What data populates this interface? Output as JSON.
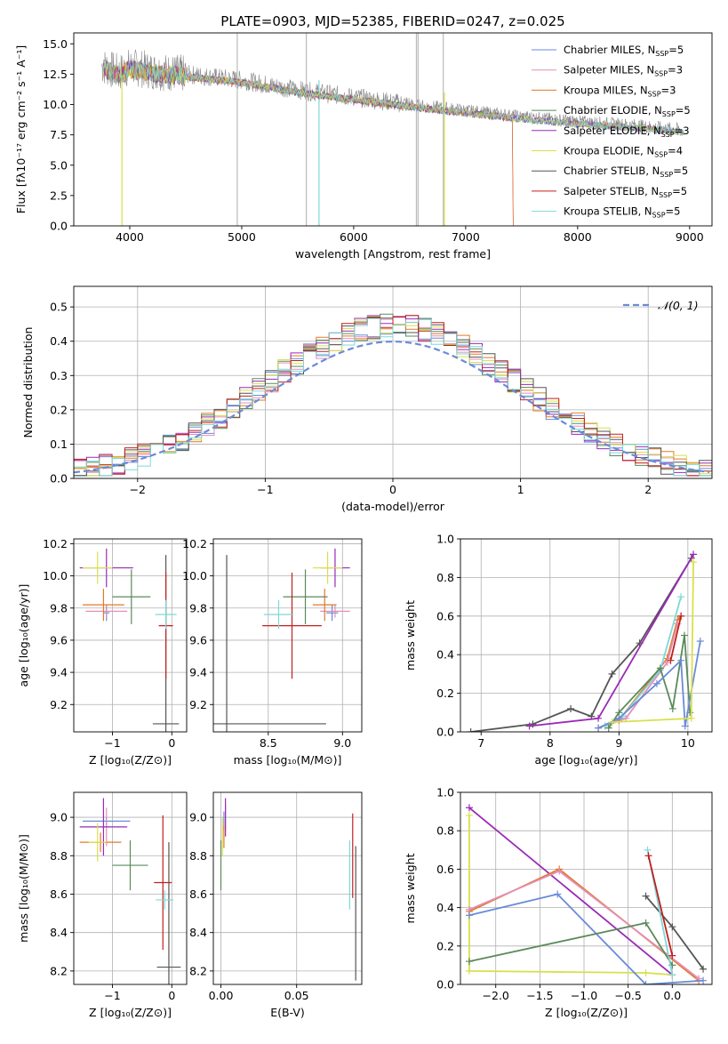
{
  "colors": {
    "blue": "#6a8bd8",
    "pink": "#e38fb8",
    "orange": "#e07a2a",
    "green": "#5b8a5b",
    "purple": "#9a2ab5",
    "yellowgreen": "#d8e04a",
    "darkgray": "#555555",
    "red": "#c0201e",
    "cyan": "#7fd8d8",
    "grid": "#b0b0b0",
    "lightgray": "#bbbbbb"
  },
  "chart_data": [
    {
      "type": "line",
      "title": "PLATE=0903, MJD=52385, FIBERID=0247, z=0.025",
      "xlabel": "wavelength [Angstrom, rest frame]",
      "ylabel": "Flux [fλ10⁻¹⁷ erg cm⁻² s⁻¹ A⁻¹]",
      "xlim": [
        3500,
        9200
      ],
      "ylim": [
        0,
        15.9
      ],
      "x_ticks": [
        "4000",
        "5000",
        "6000",
        "7000",
        "8000",
        "9000"
      ],
      "y_ticks": [
        "0.0",
        "2.5",
        "5.0",
        "7.5",
        "10.0",
        "12.5",
        "15.0"
      ],
      "grid": false,
      "legend_position": "top-right",
      "data_spectrum": [
        [
          3750,
          13.2
        ],
        [
          3900,
          12.6
        ],
        [
          4000,
          13.1
        ],
        [
          4200,
          12.8
        ],
        [
          4500,
          12.5
        ],
        [
          5000,
          12.0
        ],
        [
          5500,
          11.2
        ],
        [
          6000,
          10.6
        ],
        [
          6500,
          10.0
        ],
        [
          7000,
          9.5
        ],
        [
          7500,
          9.0
        ],
        [
          8000,
          8.6
        ],
        [
          8500,
          8.3
        ],
        [
          8950,
          7.9
        ]
      ],
      "series": [
        {
          "name": "Chabrier MILES, N_SSP=5",
          "legend_label": "Chabrier MILES, N",
          "color_key": "blue"
        },
        {
          "name": "Salpeter MILES, N_SSP=3",
          "legend_label": "Salpeter MILES, N",
          "color_key": "pink"
        },
        {
          "name": "Kroupa MILES, N_SSP=3",
          "legend_label": "Kroupa MILES, N",
          "color_key": "orange"
        },
        {
          "name": "Chabrier ELODIE, N_SSP=5",
          "legend_label": "Chabrier ELODIE, N",
          "color_key": "green"
        },
        {
          "name": "Salpeter ELODIE, N_SSP=3",
          "legend_label": "Salpeter ELODIE, N",
          "color_key": "purple"
        },
        {
          "name": "Kroupa ELODIE, N_SSP=4",
          "legend_label": "Kroupa ELODIE, N",
          "color_key": "yellowgreen"
        },
        {
          "name": "Chabrier STELIB, N_SSP=5",
          "legend_label": "Chabrier STELIB, N",
          "color_key": "darkgray"
        },
        {
          "name": "Salpeter STELIB, N_SSP=5",
          "legend_label": "Salpeter STELIB, N",
          "color_key": "red"
        },
        {
          "name": "Kroupa STELIB, N_SSP=5",
          "legend_label": "Kroupa STELIB, N",
          "color_key": "cyan"
        }
      ],
      "legend_subscript": "SSP",
      "legend_counts": [
        "=5",
        "=3",
        "=3",
        "=5",
        "=3",
        "=4",
        "=5",
        "=5",
        "=5"
      ]
    },
    {
      "type": "bar",
      "xlabel": "(data-model)/error",
      "ylabel": "Normed distribution",
      "xlim": [
        -2.5,
        2.5
      ],
      "ylim": [
        0,
        0.56
      ],
      "x_ticks": [
        "−2",
        "−1",
        "0",
        "1",
        "2"
      ],
      "y_ticks": [
        "0.0",
        "0.1",
        "0.2",
        "0.3",
        "0.4",
        "0.5"
      ],
      "grid": true,
      "legend_position": "top-right",
      "legend_label": "𝒩(0, 1)",
      "bin_width": 0.1,
      "reference_curve": "normal(0,1)"
    },
    {
      "type": "scatter",
      "xlabel": "Z [log₁₀(Z/Z⊙)]",
      "ylabel": "age  [log₁₀(age/yr)]",
      "xlim": [
        -1.65,
        0.25
      ],
      "ylim": [
        9.03,
        10.23
      ],
      "x_ticks": [
        "−1",
        "0"
      ],
      "y_ticks": [
        "9.2",
        "9.4",
        "9.6",
        "9.8",
        "10.0",
        "10.2"
      ],
      "points": [
        {
          "color_key": "blue",
          "x": -1.1,
          "xerr": 0.05,
          "y": 9.77,
          "yerr": 0.05
        },
        {
          "color_key": "pink",
          "x": -1.1,
          "xerr": 0.35,
          "y": 9.78,
          "yerr": 0.04
        },
        {
          "color_key": "orange",
          "x": -1.15,
          "xerr": 0.35,
          "y": 9.82,
          "yerr": 0.1
        },
        {
          "color_key": "green",
          "x": -0.68,
          "xerr": 0.32,
          "y": 9.87,
          "yerr": 0.17
        },
        {
          "color_key": "purple",
          "x": -1.1,
          "xerr": 0.45,
          "y": 10.05,
          "yerr": 0.12
        },
        {
          "color_key": "yellowgreen",
          "x": -1.25,
          "xerr": 0.25,
          "y": 10.05,
          "yerr": 0.1
        },
        {
          "color_key": "darkgray",
          "x": -0.1,
          "xerr": 0.22,
          "y": 9.08,
          "yerr": 1.05
        },
        {
          "color_key": "red",
          "x": -0.1,
          "xerr": 0.12,
          "y": 9.69,
          "yerr": 0.33
        },
        {
          "color_key": "cyan",
          "x": -0.1,
          "xerr": 0.18,
          "y": 9.76,
          "yerr": 0.09
        }
      ]
    },
    {
      "type": "scatter",
      "xlabel": "mass [log₁₀(M/M⊙)]",
      "ylabel": "",
      "xlim": [
        8.13,
        9.13
      ],
      "ylim": [
        9.03,
        10.23
      ],
      "x_ticks": [
        "8.5",
        "9.0"
      ],
      "y_ticks": [
        "9.2",
        "9.4",
        "9.6",
        "9.8",
        "10.0",
        "10.2"
      ],
      "points": [
        {
          "color_key": "blue",
          "x": 8.93,
          "xerr": 0.04,
          "y": 9.77,
          "yerr": 0.05
        },
        {
          "color_key": "pink",
          "x": 8.95,
          "xerr": 0.1,
          "y": 9.78,
          "yerr": 0.04
        },
        {
          "color_key": "orange",
          "x": 8.88,
          "xerr": 0.08,
          "y": 9.82,
          "yerr": 0.1
        },
        {
          "color_key": "green",
          "x": 8.75,
          "xerr": 0.15,
          "y": 9.87,
          "yerr": 0.17
        },
        {
          "color_key": "purple",
          "x": 8.95,
          "xerr": 0.1,
          "y": 10.05,
          "yerr": 0.12
        },
        {
          "color_key": "yellowgreen",
          "x": 8.9,
          "xerr": 0.1,
          "y": 10.05,
          "yerr": 0.1
        },
        {
          "color_key": "darkgray",
          "x": 8.22,
          "xerr": 0.67,
          "y": 9.08,
          "yerr": 1.05
        },
        {
          "color_key": "red",
          "x": 8.66,
          "xerr": 0.2,
          "y": 9.69,
          "yerr": 0.33
        },
        {
          "color_key": "cyan",
          "x": 8.57,
          "xerr": 0.1,
          "y": 9.76,
          "yerr": 0.09
        }
      ]
    },
    {
      "type": "line",
      "xlabel": "age  [log₁₀(age/yr)]",
      "ylabel": "mass weight",
      "xlim": [
        6.7,
        10.35
      ],
      "ylim": [
        0,
        1.0
      ],
      "x_ticks": [
        "7",
        "8",
        "9",
        "10"
      ],
      "y_ticks": [
        "0.0",
        "0.2",
        "0.4",
        "0.6",
        "0.8",
        "1.0"
      ],
      "grid": true,
      "series": [
        {
          "color_key": "darkgray",
          "x": [
            6.85,
            7.75,
            8.3,
            8.6,
            8.9,
            9.3,
            10.05
          ],
          "y": [
            0.0,
            0.04,
            0.12,
            0.08,
            0.3,
            0.46,
            0.9
          ]
        },
        {
          "color_key": "purple",
          "x": [
            7.7,
            8.7,
            10.08
          ],
          "y": [
            0.03,
            0.07,
            0.92
          ]
        },
        {
          "color_key": "orange",
          "x": [
            8.7,
            9.0,
            9.7,
            9.85,
            9.9
          ],
          "y": [
            0.02,
            0.06,
            0.38,
            0.58,
            0.6
          ]
        },
        {
          "color_key": "pink",
          "x": [
            8.8,
            9.1,
            9.7,
            9.85
          ],
          "y": [
            0.03,
            0.07,
            0.36,
            0.56
          ]
        },
        {
          "color_key": "cyan",
          "x": [
            8.8,
            9.05,
            9.6,
            9.9
          ],
          "y": [
            0.03,
            0.08,
            0.32,
            0.7
          ]
        },
        {
          "color_key": "green",
          "x": [
            8.85,
            9.0,
            9.6,
            9.78,
            9.95,
            10.03
          ],
          "y": [
            0.02,
            0.1,
            0.33,
            0.12,
            0.5,
            0.1
          ]
        },
        {
          "color_key": "blue",
          "x": [
            8.7,
            9.0,
            9.55,
            9.9,
            9.96,
            10.18
          ],
          "y": [
            0.02,
            0.07,
            0.25,
            0.37,
            0.03,
            0.47
          ]
        },
        {
          "color_key": "yellowgreen",
          "x": [
            8.9,
            10.05,
            10.08
          ],
          "y": [
            0.05,
            0.07,
            0.88
          ]
        },
        {
          "color_key": "red",
          "x": [
            9.75,
            9.9
          ],
          "y": [
            0.37,
            0.6
          ]
        }
      ]
    },
    {
      "type": "scatter",
      "xlabel": "Z [log₁₀(Z/Z⊙)]",
      "ylabel": "mass [log₁₀(M/M⊙)]",
      "xlim": [
        -1.65,
        0.25
      ],
      "ylim": [
        8.13,
        9.13
      ],
      "x_ticks": [
        "−1",
        "0"
      ],
      "y_ticks": [
        "8.2",
        "8.4",
        "8.6",
        "8.8",
        "9.0"
      ],
      "points": [
        {
          "color_key": "blue",
          "x": -1.1,
          "xerr": 0.4,
          "y": 8.98,
          "yerr": 0.02
        },
        {
          "color_key": "pink",
          "x": -1.1,
          "xerr": 0.05,
          "y": 8.95,
          "yerr": 0.1
        },
        {
          "color_key": "orange",
          "x": -1.2,
          "xerr": 0.35,
          "y": 8.87,
          "yerr": 0.05
        },
        {
          "color_key": "green",
          "x": -0.7,
          "xerr": 0.3,
          "y": 8.75,
          "yerr": 0.13
        },
        {
          "color_key": "purple",
          "x": -1.15,
          "xerr": 0.4,
          "y": 8.95,
          "yerr": 0.15
        },
        {
          "color_key": "yellowgreen",
          "x": -1.25,
          "xerr": 0.15,
          "y": 8.87,
          "yerr": 0.1
        },
        {
          "color_key": "darkgray",
          "x": -0.05,
          "xerr": 0.2,
          "y": 8.22,
          "yerr": 0.65
        },
        {
          "color_key": "red",
          "x": -0.15,
          "xerr": 0.15,
          "y": 8.66,
          "yerr": 0.35
        },
        {
          "color_key": "cyan",
          "x": -0.12,
          "xerr": 0.15,
          "y": 8.57,
          "yerr": 0.05
        }
      ]
    },
    {
      "type": "scatter",
      "xlabel": "E(B-V)",
      "ylabel": "",
      "xlim": [
        -0.005,
        0.093
      ],
      "ylim": [
        8.13,
        9.13
      ],
      "x_ticks": [
        "0.00",
        "0.05"
      ],
      "y_ticks": [
        "8.2",
        "8.4",
        "8.6",
        "8.8",
        "9.0"
      ],
      "points": [
        {
          "color_key": "blue",
          "x": 0.002,
          "y": 8.98,
          "yerr": 0.05
        },
        {
          "color_key": "pink",
          "x": 0.003,
          "y": 9.0,
          "yerr": 0.07
        },
        {
          "color_key": "orange",
          "x": 0.002,
          "y": 8.9,
          "yerr": 0.06
        },
        {
          "color_key": "green",
          "x": 0.0,
          "y": 8.75,
          "yerr": 0.13
        },
        {
          "color_key": "purple",
          "x": 0.003,
          "y": 9.0,
          "yerr": 0.1
        },
        {
          "color_key": "yellowgreen",
          "x": 0.001,
          "y": 8.9,
          "yerr": 0.1
        },
        {
          "color_key": "darkgray",
          "x": 0.089,
          "y": 8.5,
          "yerr": 0.35
        },
        {
          "color_key": "red",
          "x": 0.087,
          "y": 8.8,
          "yerr": 0.22
        },
        {
          "color_key": "cyan",
          "x": 0.085,
          "y": 8.7,
          "yerr": 0.18
        }
      ]
    },
    {
      "type": "line",
      "xlabel": "Z [log₁₀(Z/Z⊙)]",
      "ylabel": "mass weight",
      "xlim": [
        -2.4,
        0.45
      ],
      "ylim": [
        0,
        1.0
      ],
      "x_ticks": [
        "−2.0",
        "−1.5",
        "−1.0",
        "−0.5",
        "0.0"
      ],
      "y_ticks": [
        "0.0",
        "0.2",
        "0.4",
        "0.6",
        "0.8",
        "1.0"
      ],
      "grid": true,
      "series": [
        {
          "color_key": "purple",
          "x": [
            -2.3,
            0.0
          ],
          "y": [
            0.92,
            0.05
          ]
        },
        {
          "color_key": "yellowgreen",
          "x": [
            -2.3,
            -2.3,
            -0.3,
            0.0
          ],
          "y": [
            0.88,
            0.07,
            0.06,
            0.05
          ]
        },
        {
          "color_key": "orange",
          "x": [
            -2.3,
            -1.28,
            0.3
          ],
          "y": [
            0.38,
            0.6,
            0.02
          ]
        },
        {
          "color_key": "pink",
          "x": [
            -2.3,
            -1.28,
            0.3
          ],
          "y": [
            0.39,
            0.59,
            0.03
          ]
        },
        {
          "color_key": "blue",
          "x": [
            -2.3,
            -1.3,
            -0.3,
            0.35
          ],
          "y": [
            0.36,
            0.47,
            0.0,
            0.02
          ]
        },
        {
          "color_key": "green",
          "x": [
            -2.3,
            -0.3,
            0.0
          ],
          "y": [
            0.12,
            0.32,
            0.1
          ]
        },
        {
          "color_key": "darkgray",
          "x": [
            -0.3,
            0.0,
            0.35
          ],
          "y": [
            0.46,
            0.3,
            0.08
          ]
        },
        {
          "color_key": "cyan",
          "x": [
            -0.28,
            0.0
          ],
          "y": [
            0.7,
            0.05
          ]
        },
        {
          "color_key": "red",
          "x": [
            -0.27,
            0.0
          ],
          "y": [
            0.67,
            0.15
          ]
        }
      ]
    }
  ]
}
